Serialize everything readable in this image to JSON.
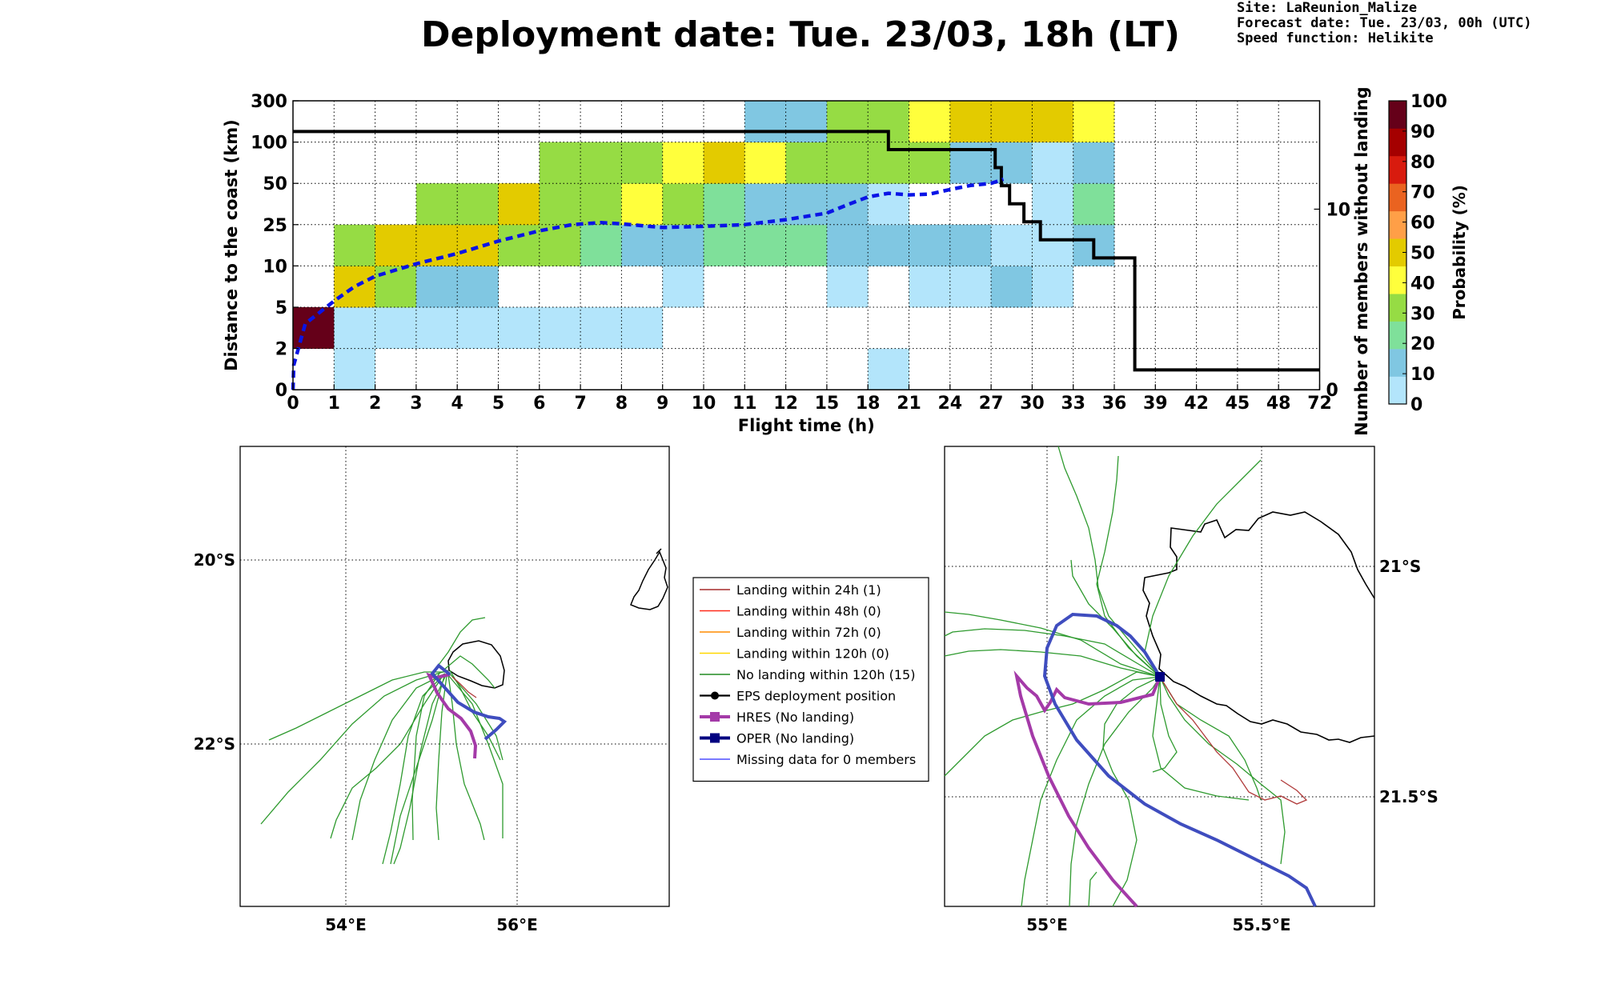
{
  "page": {
    "title": "Deployment date: Tue. 23/03, 18h (LT)",
    "info": [
      "Site: LaReunion_Malize",
      "Forecast date: Tue. 23/03, 00h (UTC)",
      "Speed function: Helikite"
    ]
  },
  "chart_data": [
    {
      "type": "heatmap",
      "xlabel": "Flight time (h)",
      "ylabel": "Distance to the coast (km)",
      "y2label": "Number of members without landing",
      "x_ticks": [
        "0",
        "1",
        "2",
        "3",
        "4",
        "5",
        "6",
        "7",
        "8",
        "9",
        "10",
        "11",
        "12",
        "15",
        "18",
        "21",
        "24",
        "27",
        "30",
        "33",
        "36",
        "39",
        "42",
        "45",
        "48",
        "72"
      ],
      "y_ticks": [
        "0",
        "2",
        "5",
        "10",
        "25",
        "50",
        "100",
        "300"
      ],
      "y2_ticks": [
        "0",
        "10"
      ],
      "y2_range": [
        0,
        16
      ],
      "colorbar": {
        "label": "Probability (%)",
        "ticks": [
          "0",
          "10",
          "20",
          "30",
          "40",
          "50",
          "60",
          "70",
          "80",
          "90",
          "100"
        ],
        "colors": [
          "#b3e5fb",
          "#80c7e2",
          "#7fe09a",
          "#96dc44",
          "#ffff3c",
          "#e3cb00",
          "#ff9f47",
          "#ea6320",
          "#d81b0e",
          "#a50000",
          "#650019"
        ]
      },
      "cells": [
        {
          "col": 0,
          "row": 1,
          "bin": 10
        },
        {
          "col": 1,
          "row": 0,
          "bin": 0
        },
        {
          "col": 1,
          "row": 1,
          "bin": 0
        },
        {
          "col": 1,
          "row": 2,
          "bin": 5
        },
        {
          "col": 1,
          "row": 3,
          "bin": 3
        },
        {
          "col": 2,
          "row": 1,
          "bin": 0
        },
        {
          "col": 2,
          "row": 2,
          "bin": 3
        },
        {
          "col": 2,
          "row": 3,
          "bin": 5
        },
        {
          "col": 3,
          "row": 1,
          "bin": 0
        },
        {
          "col": 3,
          "row": 2,
          "bin": 1
        },
        {
          "col": 3,
          "row": 3,
          "bin": 5
        },
        {
          "col": 3,
          "row": 4,
          "bin": 3
        },
        {
          "col": 4,
          "row": 1,
          "bin": 0
        },
        {
          "col": 4,
          "row": 2,
          "bin": 1
        },
        {
          "col": 4,
          "row": 3,
          "bin": 5
        },
        {
          "col": 4,
          "row": 4,
          "bin": 3
        },
        {
          "col": 5,
          "row": 1,
          "bin": 0
        },
        {
          "col": 5,
          "row": 3,
          "bin": 3
        },
        {
          "col": 5,
          "row": 4,
          "bin": 5
        },
        {
          "col": 6,
          "row": 1,
          "bin": 0
        },
        {
          "col": 6,
          "row": 3,
          "bin": 3
        },
        {
          "col": 6,
          "row": 4,
          "bin": 3
        },
        {
          "col": 6,
          "row": 5,
          "bin": 3
        },
        {
          "col": 7,
          "row": 1,
          "bin": 0
        },
        {
          "col": 7,
          "row": 3,
          "bin": 2
        },
        {
          "col": 7,
          "row": 4,
          "bin": 3
        },
        {
          "col": 7,
          "row": 5,
          "bin": 3
        },
        {
          "col": 8,
          "row": 1,
          "bin": 0
        },
        {
          "col": 8,
          "row": 3,
          "bin": 1
        },
        {
          "col": 8,
          "row": 4,
          "bin": 4
        },
        {
          "col": 8,
          "row": 5,
          "bin": 3
        },
        {
          "col": 9,
          "row": 2,
          "bin": 0
        },
        {
          "col": 9,
          "row": 3,
          "bin": 1
        },
        {
          "col": 9,
          "row": 4,
          "bin": 3
        },
        {
          "col": 9,
          "row": 5,
          "bin": 4
        },
        {
          "col": 10,
          "row": 3,
          "bin": 2
        },
        {
          "col": 10,
          "row": 4,
          "bin": 2
        },
        {
          "col": 10,
          "row": 5,
          "bin": 5
        },
        {
          "col": 11,
          "row": 3,
          "bin": 2
        },
        {
          "col": 11,
          "row": 4,
          "bin": 1
        },
        {
          "col": 11,
          "row": 5,
          "bin": 4
        },
        {
          "col": 11,
          "row": 6,
          "bin": 1
        },
        {
          "col": 12,
          "row": 3,
          "bin": 2
        },
        {
          "col": 12,
          "row": 4,
          "bin": 1
        },
        {
          "col": 12,
          "row": 5,
          "bin": 3
        },
        {
          "col": 12,
          "row": 6,
          "bin": 1
        },
        {
          "col": 13,
          "row": 2,
          "bin": 0
        },
        {
          "col": 13,
          "row": 3,
          "bin": 1
        },
        {
          "col": 13,
          "row": 4,
          "bin": 1
        },
        {
          "col": 13,
          "row": 5,
          "bin": 3
        },
        {
          "col": 13,
          "row": 6,
          "bin": 3
        },
        {
          "col": 14,
          "row": 0,
          "bin": 0
        },
        {
          "col": 14,
          "row": 3,
          "bin": 1
        },
        {
          "col": 14,
          "row": 4,
          "bin": 0
        },
        {
          "col": 14,
          "row": 5,
          "bin": 3
        },
        {
          "col": 14,
          "row": 6,
          "bin": 3
        },
        {
          "col": 15,
          "row": 2,
          "bin": 0
        },
        {
          "col": 15,
          "row": 3,
          "bin": 1
        },
        {
          "col": 15,
          "row": 5,
          "bin": 3
        },
        {
          "col": 15,
          "row": 6,
          "bin": 4
        },
        {
          "col": 16,
          "row": 2,
          "bin": 0
        },
        {
          "col": 16,
          "row": 3,
          "bin": 1
        },
        {
          "col": 16,
          "row": 5,
          "bin": 1
        },
        {
          "col": 16,
          "row": 6,
          "bin": 5
        },
        {
          "col": 17,
          "row": 2,
          "bin": 1
        },
        {
          "col": 17,
          "row": 3,
          "bin": 0
        },
        {
          "col": 17,
          "row": 5,
          "bin": 1
        },
        {
          "col": 17,
          "row": 6,
          "bin": 5
        },
        {
          "col": 18,
          "row": 2,
          "bin": 0
        },
        {
          "col": 18,
          "row": 3,
          "bin": 0
        },
        {
          "col": 18,
          "row": 4,
          "bin": 0
        },
        {
          "col": 18,
          "row": 5,
          "bin": 0
        },
        {
          "col": 18,
          "row": 6,
          "bin": 5
        },
        {
          "col": 19,
          "row": 3,
          "bin": 1
        },
        {
          "col": 19,
          "row": 4,
          "bin": 2
        },
        {
          "col": 19,
          "row": 5,
          "bin": 1
        },
        {
          "col": 19,
          "row": 6,
          "bin": 4
        }
      ],
      "series": [
        {
          "line": "black step",
          "y2_values": [
            [
              0,
              14.3
            ],
            [
              14.5,
              14.3
            ],
            [
              14.5,
              13.3
            ],
            [
              17.1,
              13.3
            ],
            [
              17.1,
              12.3
            ],
            [
              17.25,
              12.3
            ],
            [
              17.25,
              11.3
            ],
            [
              17.45,
              11.3
            ],
            [
              17.45,
              10.3
            ],
            [
              17.8,
              10.3
            ],
            [
              17.8,
              9.3
            ],
            [
              18.2,
              9.3
            ],
            [
              18.2,
              8.3
            ],
            [
              19.5,
              8.3
            ],
            [
              19.5,
              7.3
            ],
            [
              20.5,
              7.3
            ],
            [
              20.5,
              1.1
            ],
            [
              25,
              1.1
            ]
          ]
        },
        {
          "line": "blue dashed",
          "values": [
            [
              0,
              0.0
            ],
            [
              0.02,
              0.6
            ],
            [
              0.3,
              1.6
            ],
            [
              1.0,
              2.15
            ],
            [
              1.5,
              2.5
            ],
            [
              2.0,
              2.75
            ],
            [
              3.0,
              3.05
            ],
            [
              4.0,
              3.3
            ],
            [
              5.0,
              3.6
            ],
            [
              6.0,
              3.85
            ],
            [
              6.8,
              4.0
            ],
            [
              7.5,
              4.05
            ],
            [
              8.0,
              4.02
            ],
            [
              9.0,
              3.93
            ],
            [
              10.0,
              3.96
            ],
            [
              11.0,
              4.0
            ],
            [
              12.0,
              4.12
            ],
            [
              13.0,
              4.28
            ],
            [
              13.5,
              4.48
            ],
            [
              14.0,
              4.67
            ],
            [
              14.5,
              4.76
            ],
            [
              15.0,
              4.72
            ],
            [
              15.5,
              4.74
            ],
            [
              16.0,
              4.85
            ],
            [
              16.5,
              4.95
            ],
            [
              17.0,
              5.0
            ],
            [
              17.3,
              5.1
            ]
          ]
        }
      ]
    }
  ],
  "map_left": {
    "lat_labels": [
      "20°S",
      "22°S"
    ],
    "lon_labels": [
      "54°E",
      "56°E"
    ]
  },
  "map_right": {
    "lat_labels": [
      "21°S",
      "21.5°S"
    ],
    "lon_labels": [
      "55°E",
      "55.5°E"
    ]
  },
  "legend": {
    "items": [
      {
        "label": "Landing within 24h (1)",
        "color": "#a52a2a",
        "type": "line"
      },
      {
        "label": "Landing within 48h (0)",
        "color": "#ff2a1a",
        "type": "line"
      },
      {
        "label": "Landing within 72h (0)",
        "color": "#ff8c00",
        "type": "line"
      },
      {
        "label": "Landing within 120h (0)",
        "color": "#ffd700",
        "type": "line"
      },
      {
        "label": "No landing within 120h (15)",
        "color": "#228b22",
        "type": "line"
      },
      {
        "label": "EPS deployment position",
        "color": "#000000",
        "type": "dot"
      },
      {
        "label": "HRES (No landing)",
        "color": "#a43aa8",
        "type": "square-thick"
      },
      {
        "label": "OPER (No landing)",
        "color": "#000080",
        "type": "square-thick"
      },
      {
        "label": "Missing data for 0 members",
        "color": "#4d4dff",
        "type": "line"
      }
    ]
  }
}
